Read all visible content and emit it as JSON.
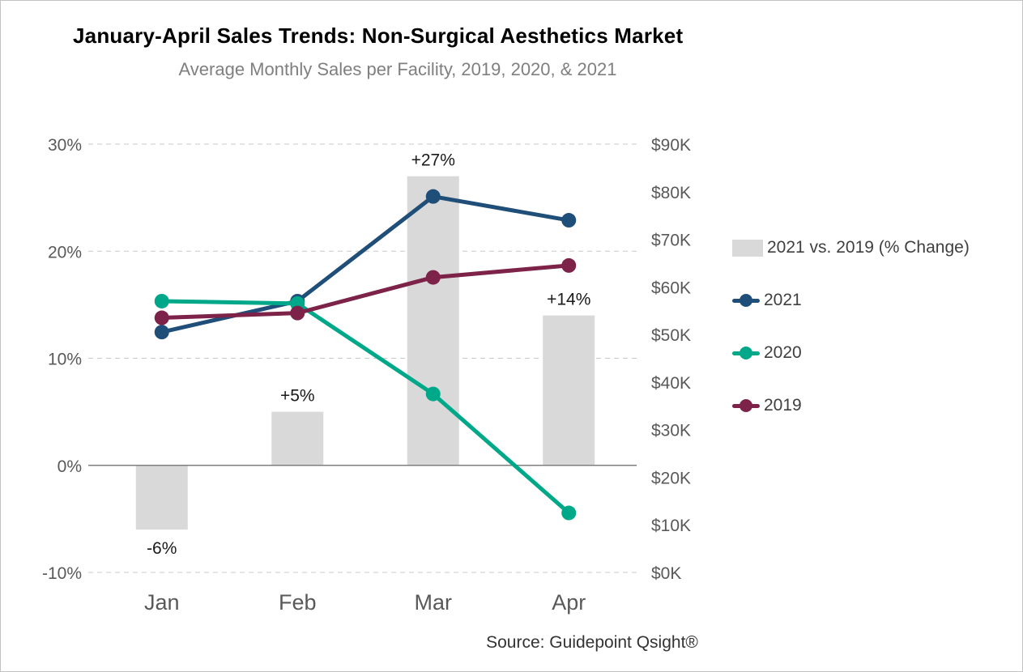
{
  "title": "January-April Sales Trends: Non-Surgical Aesthetics Market",
  "subtitle": "Average Monthly Sales per Facility, 2019, 2020, & 2021",
  "source": "Source: Guidepoint Qsight®",
  "colors": {
    "bar": "#d9d9d9",
    "s2021": "#1f4e79",
    "s2020": "#00a88a",
    "s2019": "#7d2248",
    "axis_text": "#595959",
    "gridline": "#c9c9c9",
    "zero_line": "#7f7f7f",
    "bar_label": "#1a1a1a"
  },
  "chart_data": {
    "type": "combo",
    "categories": [
      "Jan",
      "Feb",
      "Mar",
      "Apr"
    ],
    "bar_series": {
      "name": "2021 vs. 2019 (% Change)",
      "axis": "left",
      "values": [
        -6,
        5,
        27,
        14
      ],
      "labels": [
        "-6%",
        "+5%",
        "+27%",
        "+14%"
      ]
    },
    "line_series": [
      {
        "name": "2021",
        "axis": "right",
        "color_key": "s2021",
        "values": [
          50.5,
          57,
          79,
          74
        ]
      },
      {
        "name": "2020",
        "axis": "right",
        "color_key": "s2020",
        "values": [
          57,
          56.5,
          37.5,
          12.5
        ]
      },
      {
        "name": "2019",
        "axis": "right",
        "color_key": "s2019",
        "values": [
          53.5,
          54.5,
          62,
          64.5
        ]
      }
    ],
    "left_axis": {
      "min": -10,
      "max": 30,
      "tick_values": [
        30,
        20,
        10,
        0,
        -10
      ],
      "ticks": [
        "30%",
        "20%",
        "10%",
        "0%",
        "-10%"
      ]
    },
    "right_axis": {
      "min": 0,
      "max": 90,
      "tick_values": [
        90,
        80,
        70,
        60,
        50,
        40,
        30,
        20,
        10,
        0
      ],
      "ticks": [
        "$90K",
        "$80K",
        "$70K",
        "$60K",
        "$50K",
        "$40K",
        "$30K",
        "$20K",
        "$10K",
        "$0K"
      ]
    },
    "legend_position": "right",
    "grid": "dashed horizontal"
  }
}
